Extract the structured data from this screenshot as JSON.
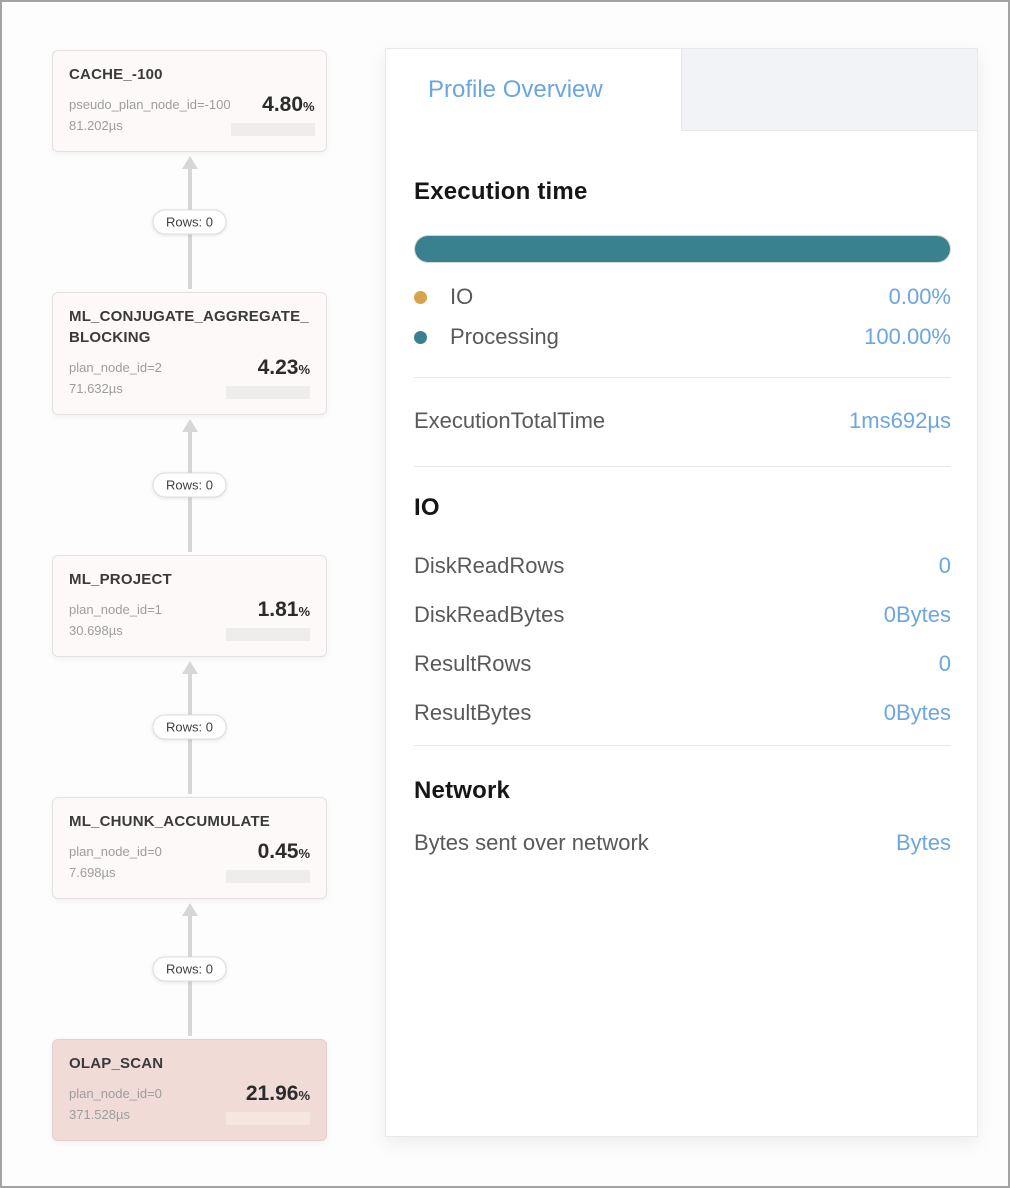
{
  "colors": {
    "accent_blue": "#6CA6E0",
    "teal": "#39818E",
    "orange": "#D9A24C",
    "selected_node_bg": "#F1DBD7",
    "node_bg": "#FCF9F8",
    "tab_strip_bg": "#F2F3F7"
  },
  "plan_tree": {
    "nodes": [
      {
        "title": "CACHE_-100",
        "meta": "pseudo_plan_node_id=-100",
        "time": "81.202µs",
        "pct": "4.80",
        "unit": "%",
        "selected": false
      },
      {
        "title": "ML_CONJUGATE_AGGREGATE_BLOCKING",
        "meta": "plan_node_id=2",
        "time": "71.632µs",
        "pct": "4.23",
        "unit": "%",
        "selected": false
      },
      {
        "title": "ML_PROJECT",
        "meta": "plan_node_id=1",
        "time": "30.698µs",
        "pct": "1.81",
        "unit": "%",
        "selected": false
      },
      {
        "title": "ML_CHUNK_ACCUMULATE",
        "meta": "plan_node_id=0",
        "time": "7.698µs",
        "pct": "0.45",
        "unit": "%",
        "selected": false
      },
      {
        "title": "OLAP_SCAN",
        "meta": "plan_node_id=0",
        "time": "371.528µs",
        "pct": "21.96",
        "unit": "%",
        "selected": true
      }
    ],
    "edges": [
      {
        "label": "Rows: 0"
      },
      {
        "label": "Rows: 0"
      },
      {
        "label": "Rows: 0"
      },
      {
        "label": "Rows: 0"
      }
    ]
  },
  "panel": {
    "tab_label": "Profile Overview",
    "execution_time": {
      "heading": "Execution time",
      "segments": [
        {
          "label": "IO",
          "value": "0.00%",
          "pct": 0,
          "color": "#D9A24C"
        },
        {
          "label": "Processing",
          "value": "100.00%",
          "pct": 100,
          "color": "#39818E"
        }
      ]
    },
    "total": {
      "label": "ExecutionTotalTime",
      "value": "1ms692µs"
    },
    "io": {
      "heading": "IO",
      "rows": [
        {
          "label": "DiskReadRows",
          "value": "0"
        },
        {
          "label": "DiskReadBytes",
          "value": "0Bytes"
        },
        {
          "label": "ResultRows",
          "value": "0"
        },
        {
          "label": "ResultBytes",
          "value": "0Bytes"
        }
      ]
    },
    "network": {
      "heading": "Network",
      "rows": [
        {
          "label": "Bytes sent over network",
          "value": "Bytes"
        }
      ]
    }
  }
}
